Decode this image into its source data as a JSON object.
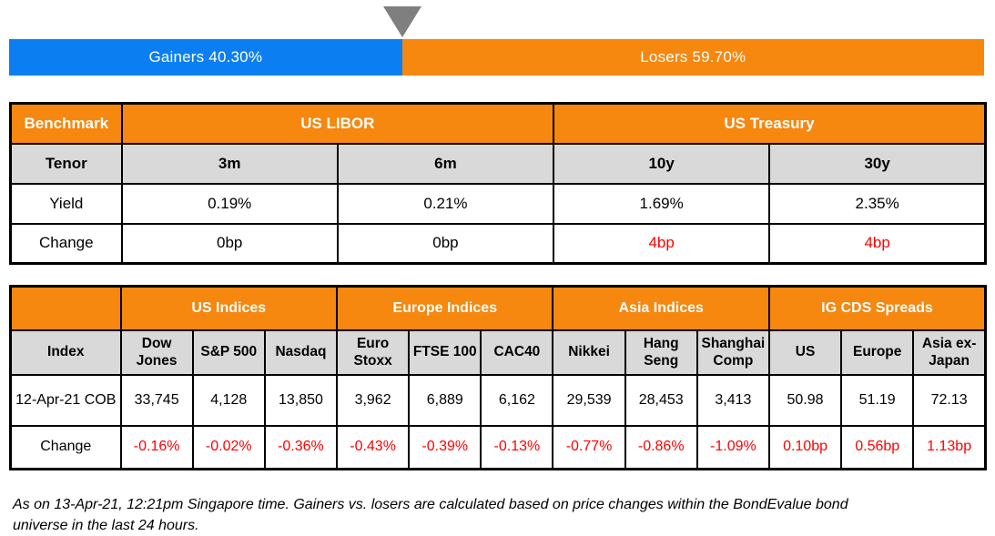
{
  "colors": {
    "gainers_blue": "#0b7ff2",
    "losers_orange": "#f6870f",
    "header_orange": "#f6870f",
    "header_gray": "#d9d9d9",
    "negative_red": "#ff0000",
    "triangle_gray": "#7f7f7f"
  },
  "gainers_losers": {
    "gainers_label": "Gainers 40.30%",
    "losers_label": "Losers 59.70%",
    "gainers_pct": 40.3,
    "losers_pct": 59.7
  },
  "benchmark_table": {
    "corner": "Benchmark",
    "group_us_libor": "US LIBOR",
    "group_us_treasury": "US Treasury",
    "tenor_label": "Tenor",
    "yield_label": "Yield",
    "change_label": "Change",
    "tenors": [
      "3m",
      "6m",
      "10y",
      "30y"
    ],
    "yields": [
      "0.19%",
      "0.21%",
      "1.69%",
      "2.35%"
    ],
    "changes": [
      "0bp",
      "0bp",
      "4bp",
      "4bp"
    ]
  },
  "indices_table": {
    "index_label": "Index",
    "groups": [
      "US Indices",
      "Europe Indices",
      "Asia Indices",
      "IG CDS Spreads"
    ],
    "columns": [
      "Dow Jones",
      "S&P 500",
      "Nasdaq",
      "Euro Stoxx",
      "FTSE 100",
      "CAC40",
      "Nikkei",
      "Hang Seng",
      "Shanghai Comp",
      "US",
      "Europe",
      "Asia ex-Japan"
    ],
    "cob_label": "12-Apr-21 COB",
    "change_label": "Change",
    "cob_values": [
      "33,745",
      "4,128",
      "13,850",
      "3,962",
      "6,889",
      "6,162",
      "29,539",
      "28,453",
      "3,413",
      "50.98",
      "51.19",
      "72.13"
    ],
    "change_values": [
      "-0.16%",
      "-0.02%",
      "-0.36%",
      "-0.43%",
      "-0.39%",
      "-0.13%",
      "-0.77%",
      "-0.86%",
      "-1.09%",
      "0.10bp",
      "0.56bp",
      "1.13bp"
    ]
  },
  "footnote": "As on 13-Apr-21, 12:21pm Singapore time. Gainers vs. losers are calculated based on price changes within the BondEvalue bond universe in the last 24 hours.",
  "chart_data": [
    {
      "type": "bar",
      "title": "Gainers vs Losers",
      "orientation": "horizontal-stacked",
      "categories": [
        "Gainers",
        "Losers"
      ],
      "values": [
        40.3,
        59.7
      ],
      "unit": "%",
      "colors": [
        "#0b7ff2",
        "#f6870f"
      ],
      "annotations": [
        "Gainers 40.30%",
        "Losers 59.70%"
      ]
    },
    {
      "type": "table",
      "title": "Benchmark",
      "column_groups": [
        "US LIBOR",
        "US LIBOR",
        "US Treasury",
        "US Treasury"
      ],
      "columns": [
        "3m",
        "6m",
        "10y",
        "30y"
      ],
      "rows": [
        {
          "label": "Yield",
          "values": [
            "0.19%",
            "0.21%",
            "1.69%",
            "2.35%"
          ]
        },
        {
          "label": "Change",
          "values": [
            "0bp",
            "0bp",
            "4bp",
            "4bp"
          ]
        }
      ]
    },
    {
      "type": "table",
      "title": "Index",
      "column_groups": [
        "US Indices",
        "US Indices",
        "US Indices",
        "Europe Indices",
        "Europe Indices",
        "Europe Indices",
        "Asia Indices",
        "Asia Indices",
        "Asia Indices",
        "IG CDS Spreads",
        "IG CDS Spreads",
        "IG CDS Spreads"
      ],
      "columns": [
        "Dow Jones",
        "S&P 500",
        "Nasdaq",
        "Euro Stoxx",
        "FTSE 100",
        "CAC40",
        "Nikkei",
        "Hang Seng",
        "Shanghai Comp",
        "US",
        "Europe",
        "Asia ex-Japan"
      ],
      "rows": [
        {
          "label": "12-Apr-21 COB",
          "values": [
            33745,
            4128,
            13850,
            3962,
            6889,
            6162,
            29539,
            28453,
            3413,
            50.98,
            51.19,
            72.13
          ]
        },
        {
          "label": "Change",
          "values": [
            "-0.16%",
            "-0.02%",
            "-0.36%",
            "-0.43%",
            "-0.39%",
            "-0.13%",
            "-0.77%",
            "-0.86%",
            "-1.09%",
            "0.10bp",
            "0.56bp",
            "1.13bp"
          ]
        }
      ]
    }
  ]
}
